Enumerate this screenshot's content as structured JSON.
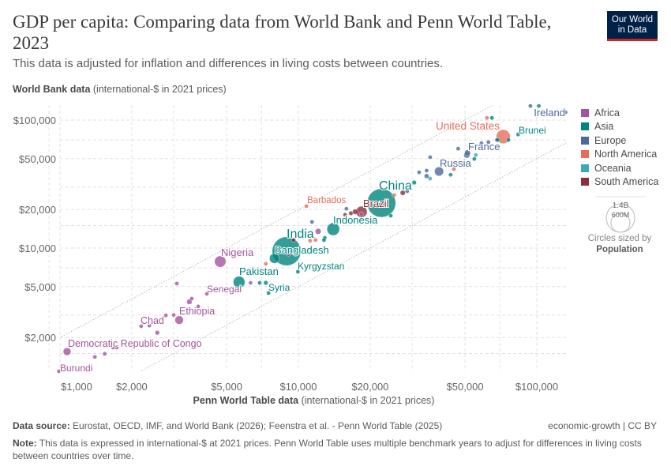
{
  "header": {
    "title": "GDP per capita: Comparing data from World Bank and Penn World Table, 2023",
    "subtitle": "This data is adjusted for inflation and differences in living costs between countries.",
    "y_title_bold": "World Bank data",
    "y_title_rest": " (international-$ in 2021 prices)",
    "logo_line1": "Our World",
    "logo_line2": "in Data"
  },
  "x_title_bold": "Penn World Table data",
  "x_title_rest": " (international-$ in 2021 prices)",
  "footer": {
    "source_label": "Data source:",
    "source_text": " Eurostat, OECD, IMF, and World Bank (2026); Feenstra et al. - Penn World Table (2025)",
    "license": "economic-growth | CC BY",
    "note_label": "Note:",
    "note_text": " This data is expressed in international-$ at 2021 prices. Penn World Table uses multiple benchmark years to adjust for differences in living costs between countries over time."
  },
  "legend": {
    "regions": [
      {
        "name": "Africa",
        "color": "#a2559c"
      },
      {
        "name": "Asia",
        "color": "#00847e"
      },
      {
        "name": "Europe",
        "color": "#4c6a9c"
      },
      {
        "name": "North America",
        "color": "#e56e5a"
      },
      {
        "name": "Oceania",
        "color": "#38aaba"
      },
      {
        "name": "South America",
        "color": "#883039"
      }
    ],
    "size_values": [
      "1.4B",
      "600M"
    ],
    "size_caption": "Circles sized by",
    "size_variable": "Population"
  },
  "chart_data": {
    "type": "scatter",
    "x_scale": "log",
    "y_scale": "log",
    "xlim": [
      840,
      134000
    ],
    "ylim": [
      1090,
      133000
    ],
    "x_ticks": [
      {
        "v": 1000,
        "label": "$1,000"
      },
      {
        "v": 2000,
        "label": "$2,000"
      },
      {
        "v": 5000,
        "label": "$5,000"
      },
      {
        "v": 10000,
        "label": "$10,000"
      },
      {
        "v": 20000,
        "label": "$20,000"
      },
      {
        "v": 50000,
        "label": "$50,000"
      },
      {
        "v": 100000,
        "label": "$100,000"
      }
    ],
    "y_ticks": [
      {
        "v": 2000,
        "label": "$2,000"
      },
      {
        "v": 5000,
        "label": "$5,000"
      },
      {
        "v": 10000,
        "label": "$10,000"
      },
      {
        "v": 20000,
        "label": "$20,000"
      },
      {
        "v": 50000,
        "label": "$50,000"
      },
      {
        "v": 100000,
        "label": "$100,000"
      }
    ],
    "grid": true,
    "reference_lines": [
      2,
      0.5
    ],
    "legend_position": "right",
    "points": [
      {
        "name": "Burundi",
        "region": "Africa",
        "x": 990,
        "y": 1090,
        "population": 14
      },
      {
        "name": "Democratic Republic of Congo",
        "region": "Africa",
        "x": 1071,
        "y": 1553,
        "population": 105
      },
      {
        "name": "Chad",
        "region": "Africa",
        "x": 2370,
        "y": 2480,
        "population": 19
      },
      {
        "name": "Ethiopia",
        "region": "Africa",
        "x": 3162,
        "y": 2740,
        "population": 125
      },
      {
        "name": "Senegal",
        "region": "Africa",
        "x": 4130,
        "y": 4390,
        "population": 18
      },
      {
        "name": "Nigeria",
        "region": "Africa",
        "x": 4700,
        "y": 7850,
        "population": 225
      },
      {
        "name": "Pakistan",
        "region": "Asia",
        "x": 5640,
        "y": 5420,
        "population": 240
      },
      {
        "name": "Syria",
        "region": "Asia",
        "x": 7490,
        "y": 4450,
        "population": 23
      },
      {
        "name": "Bangladesh",
        "region": "Asia",
        "x": 7930,
        "y": 8300,
        "population": 170
      },
      {
        "name": "India",
        "region": "Asia",
        "x": 8920,
        "y": 9450,
        "population": 1430
      },
      {
        "name": "Kyrgyzstan",
        "region": "Asia",
        "x": 9950,
        "y": 6530,
        "population": 7
      },
      {
        "name": "Barbados",
        "region": "North America",
        "x": 10800,
        "y": 21250,
        "population": 3
      },
      {
        "name": "Indonesia",
        "region": "Asia",
        "x": 14000,
        "y": 14060,
        "population": 278
      },
      {
        "name": "Brazil",
        "region": "South America",
        "x": 18400,
        "y": 19200,
        "population": 215
      },
      {
        "name": "China",
        "region": "Asia",
        "x": 22300,
        "y": 22500,
        "population": 1410
      },
      {
        "name": "Russia",
        "region": "Europe",
        "x": 38900,
        "y": 39700,
        "population": 144
      },
      {
        "name": "France",
        "region": "Europe",
        "x": 50900,
        "y": 53400,
        "population": 68
      },
      {
        "name": "United States",
        "region": "North America",
        "x": 72300,
        "y": 74300,
        "population": 340
      },
      {
        "name": "Brunei",
        "region": "Asia",
        "x": 83500,
        "y": 77300,
        "population": 3
      },
      {
        "name": "Ireland",
        "region": "Europe",
        "x": 132000,
        "y": 115000,
        "population": 5
      },
      {
        "region": "Africa",
        "x": 1400,
        "y": 1410,
        "population": 20
      },
      {
        "region": "Africa",
        "x": 1540,
        "y": 1490,
        "population": 30
      },
      {
        "region": "Africa",
        "x": 1670,
        "y": 1670,
        "population": 20
      },
      {
        "region": "Africa",
        "x": 1730,
        "y": 1670,
        "population": 10
      },
      {
        "region": "Africa",
        "x": 2560,
        "y": 2180,
        "population": 35
      },
      {
        "region": "Africa",
        "x": 2190,
        "y": 2450,
        "population": 20
      },
      {
        "region": "Africa",
        "x": 2780,
        "y": 2980,
        "population": 20
      },
      {
        "region": "Africa",
        "x": 3000,
        "y": 3000,
        "population": 12
      },
      {
        "region": "Africa",
        "x": 3490,
        "y": 3800,
        "population": 50
      },
      {
        "region": "Africa",
        "x": 3570,
        "y": 4030,
        "population": 20
      },
      {
        "region": "Africa",
        "x": 3800,
        "y": 3500,
        "population": 10
      },
      {
        "region": "Africa",
        "x": 3090,
        "y": 5280,
        "population": 8
      },
      {
        "region": "Africa",
        "x": 6300,
        "y": 5350,
        "population": 8
      },
      {
        "region": "Asia",
        "x": 7300,
        "y": 5350,
        "population": 35
      },
      {
        "region": "Asia",
        "x": 6880,
        "y": 5350,
        "population": 10
      },
      {
        "region": "Africa",
        "x": 9100,
        "y": 8960,
        "population": 15
      },
      {
        "region": "Africa",
        "x": 12100,
        "y": 13500,
        "population": 60
      },
      {
        "region": "Asia",
        "x": 12900,
        "y": 12020,
        "population": 20
      },
      {
        "region": "North America",
        "x": 11800,
        "y": 11550,
        "population": 10
      },
      {
        "region": "North America",
        "x": 11200,
        "y": 11400,
        "population": 5
      },
      {
        "region": "North America",
        "x": 7300,
        "y": 7530,
        "population": 10
      },
      {
        "region": "South America",
        "x": 9550,
        "y": 11550,
        "population": 15
      },
      {
        "region": "Europe",
        "x": 11400,
        "y": 16000,
        "population": 10
      },
      {
        "region": "Asia",
        "x": 12800,
        "y": 11550,
        "population": 15
      },
      {
        "region": "South America",
        "x": 17300,
        "y": 19200,
        "population": 50
      },
      {
        "region": "South America",
        "x": 16600,
        "y": 18700,
        "population": 33
      },
      {
        "region": "South America",
        "x": 15700,
        "y": 18200,
        "population": 20
      },
      {
        "region": "Africa",
        "x": 18400,
        "y": 18400,
        "population": 5
      },
      {
        "region": "Asia",
        "x": 24400,
        "y": 17900,
        "population": 10
      },
      {
        "region": "Europe",
        "x": 15900,
        "y": 20300,
        "population": 10
      },
      {
        "region": "North America",
        "x": 25200,
        "y": 25900,
        "population": 5
      },
      {
        "region": "South America",
        "x": 27400,
        "y": 27000,
        "population": 45
      },
      {
        "region": "Europe",
        "x": 28600,
        "y": 27800,
        "population": 10
      },
      {
        "region": "Asia",
        "x": 30600,
        "y": 32500,
        "population": 35
      },
      {
        "region": "Europe",
        "x": 32100,
        "y": 39100,
        "population": 10
      },
      {
        "region": "Europe",
        "x": 34500,
        "y": 40300,
        "population": 20
      },
      {
        "region": "Oceania",
        "x": 35700,
        "y": 34900,
        "population": 30
      },
      {
        "region": "Europe",
        "x": 34500,
        "y": 36500,
        "population": 40
      },
      {
        "region": "Europe",
        "x": 35700,
        "y": 51300,
        "population": 5
      },
      {
        "region": "North America",
        "x": 44900,
        "y": 41400,
        "population": 5
      },
      {
        "region": "Asia",
        "x": 43500,
        "y": 37400,
        "population": 8
      },
      {
        "region": "Europe",
        "x": 46800,
        "y": 59800,
        "population": 10
      },
      {
        "region": "Europe",
        "x": 51200,
        "y": 55500,
        "population": 60
      },
      {
        "region": "Oceania",
        "x": 55500,
        "y": 53300,
        "population": 26
      },
      {
        "region": "Asia",
        "x": 54700,
        "y": 49700,
        "population": 6
      },
      {
        "region": "Europe",
        "x": 62700,
        "y": 67300,
        "population": 10
      },
      {
        "region": "Europe",
        "x": 67900,
        "y": 70000,
        "population": 6
      },
      {
        "region": "Europe",
        "x": 58600,
        "y": 66000,
        "population": 5
      },
      {
        "region": "North America",
        "x": 61800,
        "y": 104000,
        "population": 3
      },
      {
        "region": "Asia",
        "x": 64800,
        "y": 104000,
        "population": 3
      },
      {
        "region": "Asia",
        "x": 68500,
        "y": 70000,
        "population": 5
      },
      {
        "region": "Asia",
        "x": 76000,
        "y": 70000,
        "population": 5
      },
      {
        "region": "Europe",
        "x": 94000,
        "y": 129000,
        "population": 3
      },
      {
        "region": "Asia",
        "x": 102000,
        "y": 129000,
        "population": 6
      }
    ]
  }
}
